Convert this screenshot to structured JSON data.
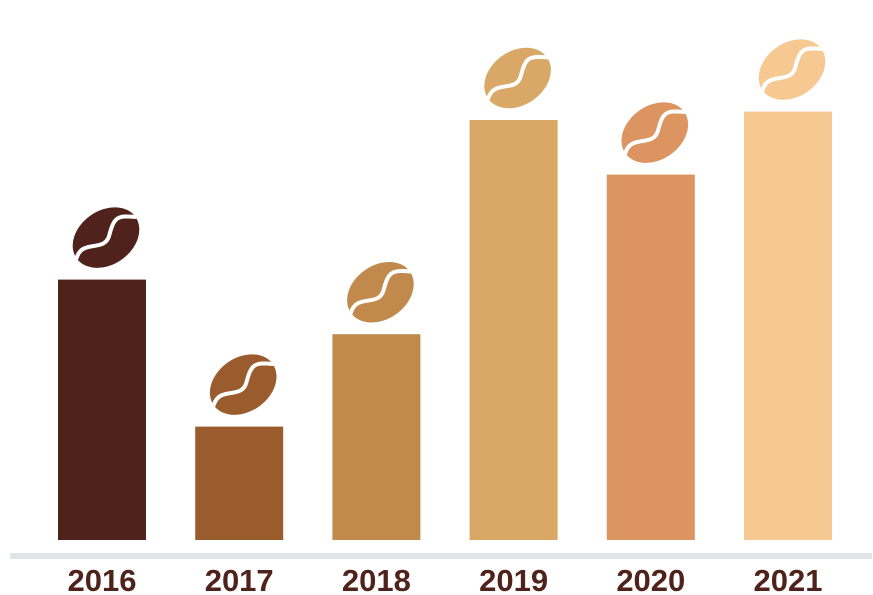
{
  "chart_data": {
    "type": "bar",
    "title": "",
    "xlabel": "",
    "ylabel": "",
    "categories": [
      "2016",
      "2017",
      "2018",
      "2019",
      "2020",
      "2021"
    ],
    "values": [
      62,
      27,
      49,
      100,
      87,
      102
    ],
    "ylim": [
      0,
      110
    ],
    "grid": false,
    "colors": [
      "#4f231c",
      "#9a5b2d",
      "#c1894c",
      "#d9a866",
      "#dc9460",
      "#f7c992"
    ],
    "marker_icon": "coffee-bean-icon",
    "axis_color": "#e2e5e8",
    "label_color": "#4f231c"
  }
}
